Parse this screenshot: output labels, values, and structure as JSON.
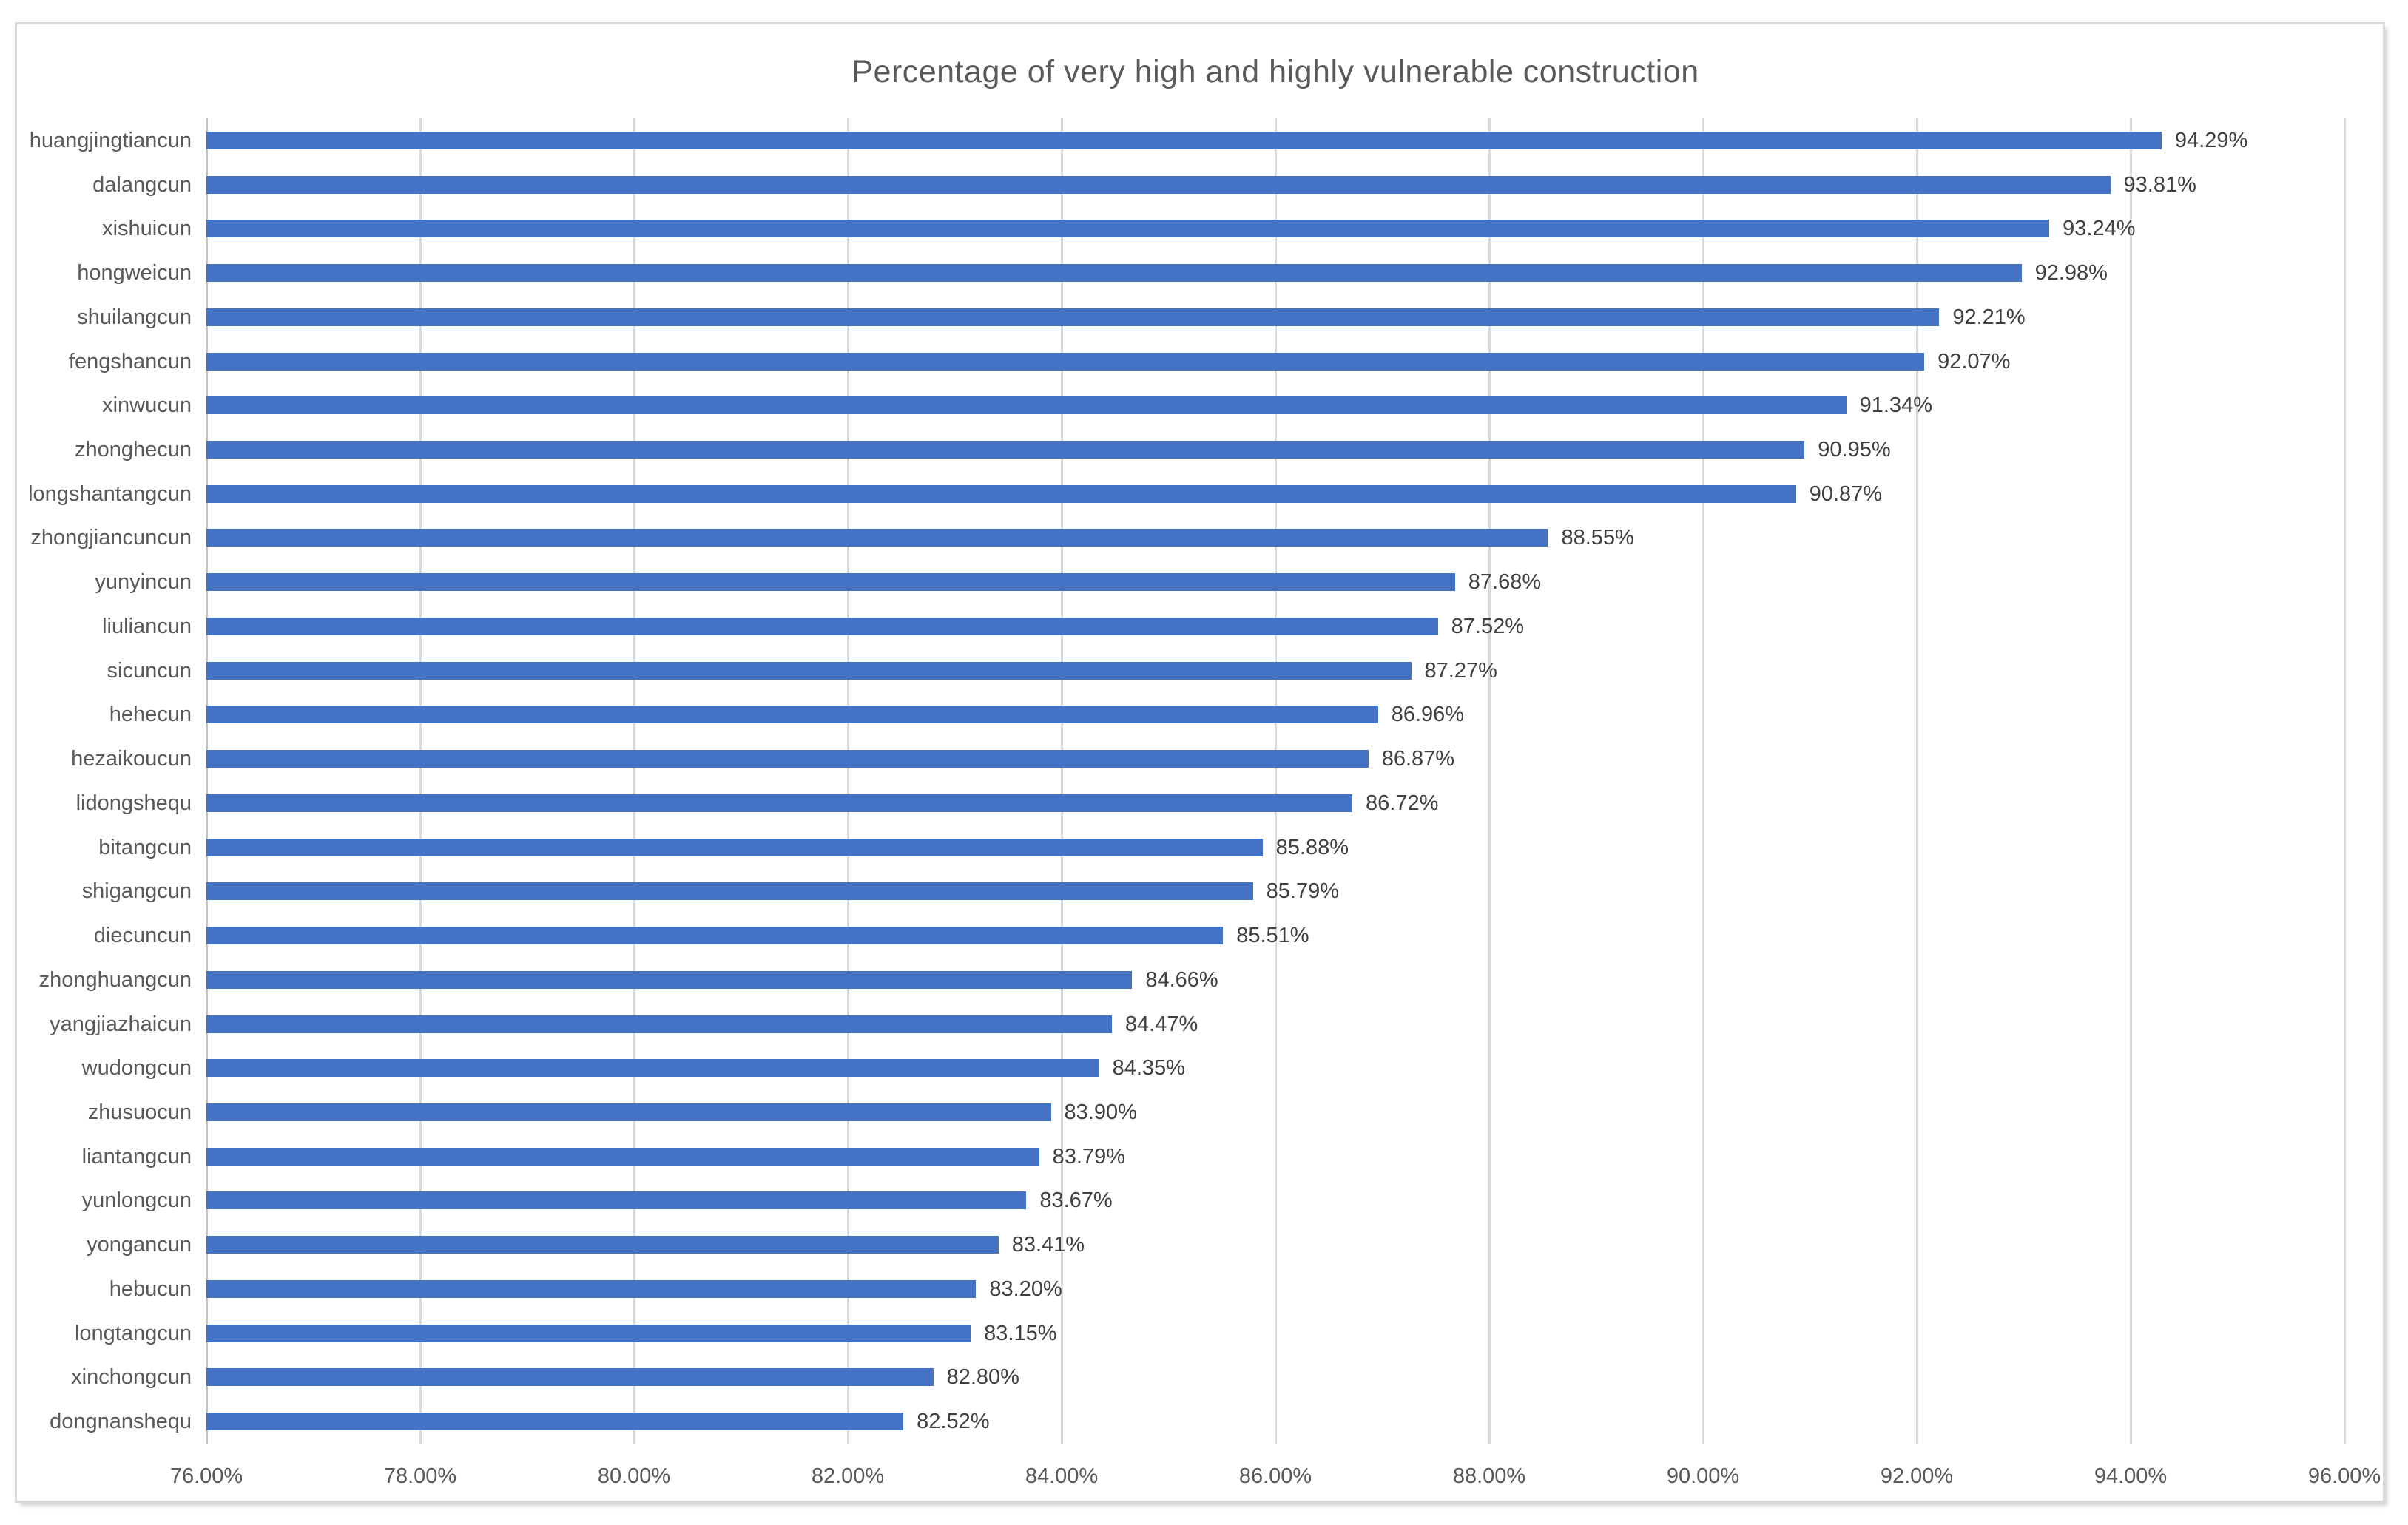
{
  "chart_data": {
    "type": "bar",
    "orientation": "horizontal",
    "title": "Percentage of very high and highly vulnerable construction",
    "categories": [
      "huangjingtiancun",
      "dalangcun",
      "xishuicun",
      "hongweicun",
      "shuilangcun",
      "fengshancun",
      "xinwucun",
      "zhonghecun",
      "longshantangcun",
      "zhongjiancuncun",
      "yunyincun",
      "liuliancun",
      "sicuncun",
      "hehecun",
      "hezaikoucun",
      "lidongshequ",
      "bitangcun",
      "shigangcun",
      "diecuncun",
      "zhonghuangcun",
      "yangjiazhaicun",
      "wudongcun",
      "zhusuocun",
      "liantangcun",
      "yunlongcun",
      "yongancun",
      "hebucun",
      "longtangcun",
      "xinchongcun",
      "dongnanshequ"
    ],
    "values": [
      94.29,
      93.81,
      93.24,
      92.98,
      92.21,
      92.07,
      91.34,
      90.95,
      90.87,
      88.55,
      87.68,
      87.52,
      87.27,
      86.96,
      86.87,
      86.72,
      85.88,
      85.79,
      85.51,
      84.66,
      84.47,
      84.35,
      83.9,
      83.79,
      83.67,
      83.41,
      83.2,
      83.15,
      82.8,
      82.52
    ],
    "value_labels": [
      "94.29%",
      "93.81%",
      "93.24%",
      "92.98%",
      "92.21%",
      "92.07%",
      "91.34%",
      "90.95%",
      "90.87%",
      "88.55%",
      "87.68%",
      "87.52%",
      "87.27%",
      "86.96%",
      "86.87%",
      "86.72%",
      "85.88%",
      "85.79%",
      "85.51%",
      "84.66%",
      "84.47%",
      "84.35%",
      "83.90%",
      "83.79%",
      "83.67%",
      "83.41%",
      "83.20%",
      "83.15%",
      "82.80%",
      "82.52%"
    ],
    "x_ticks": [
      "76.00%",
      "78.00%",
      "80.00%",
      "82.00%",
      "84.00%",
      "86.00%",
      "88.00%",
      "90.00%",
      "92.00%",
      "94.00%",
      "96.00%"
    ],
    "xlim": [
      76,
      96
    ],
    "grid": true,
    "legend_position": "none",
    "bar_color": "#4472C4",
    "gridline_color": "#D9D9D9",
    "axis_line_color": "#C3C3C3",
    "title_color": "#595959",
    "tick_label_color": "#595959",
    "value_label_color": "#404040"
  }
}
